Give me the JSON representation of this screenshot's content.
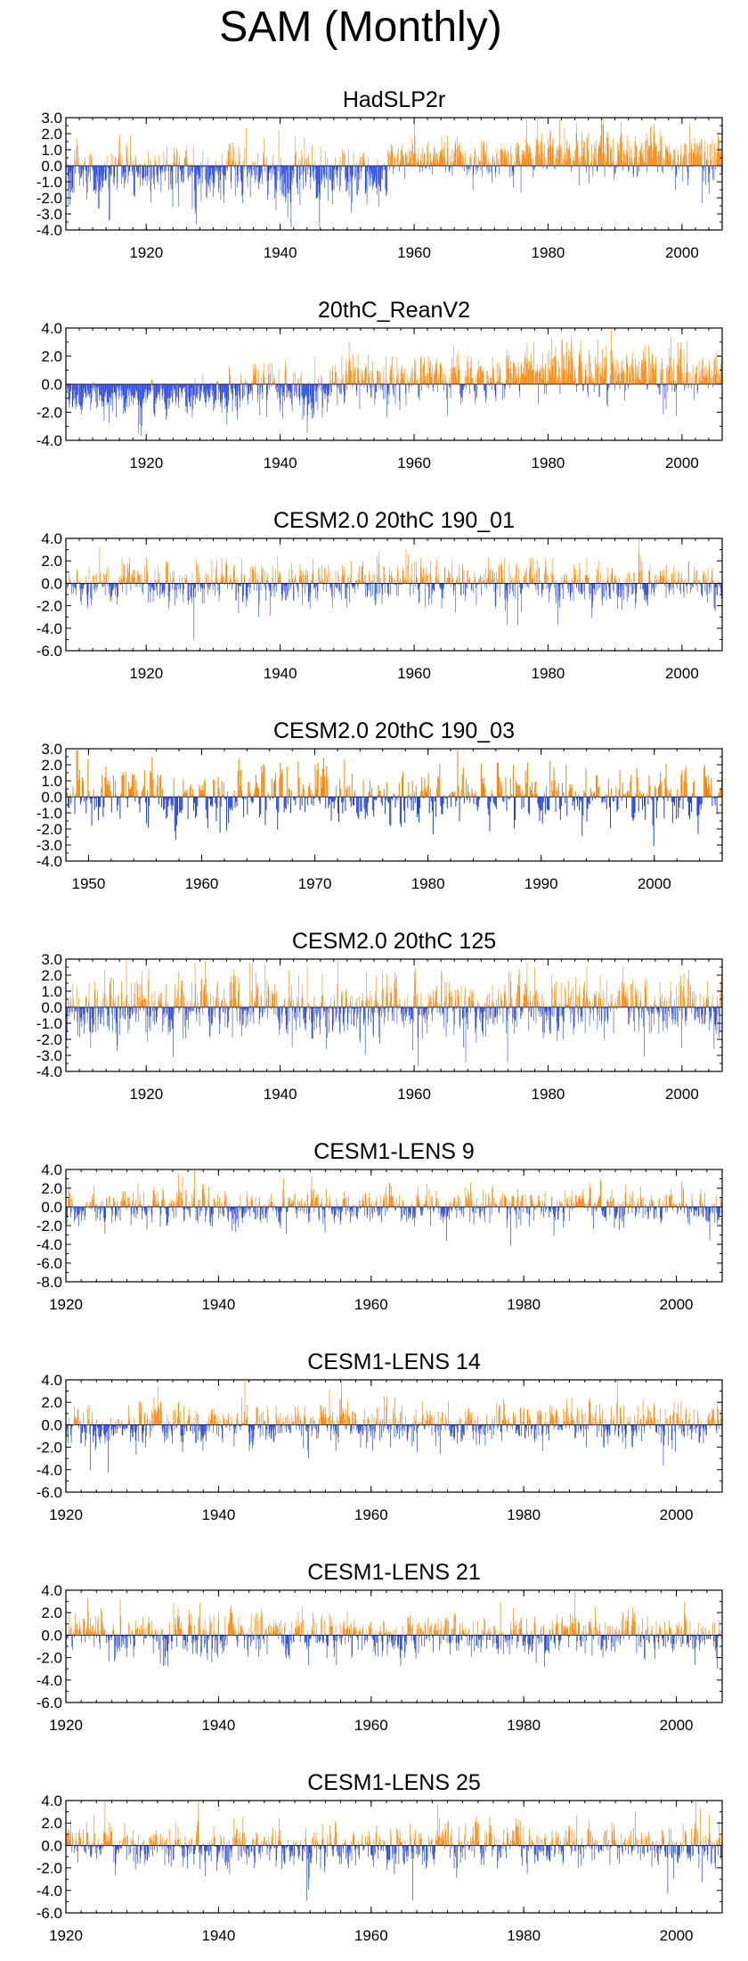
{
  "figure_title": "SAM (Monthly)",
  "colors": {
    "positive": "#ff8000",
    "negative": "#2040dc",
    "axis": "#000000"
  },
  "chart_data": [
    {
      "type": "bar",
      "title": "HadSLP2r",
      "x_range": [
        1908,
        2006
      ],
      "ylim": [
        -4.0,
        3.0
      ],
      "y_ticks": [
        "3.0",
        "2.0",
        "1.0",
        "0.0",
        "-1.0",
        "-2.0",
        "-3.0",
        "-4.0"
      ],
      "x_ticks": [
        "1920",
        "1940",
        "1960",
        "1980",
        "2000"
      ],
      "segments": [
        {
          "start": 1908,
          "end": 1932,
          "mean": -0.6,
          "spread": 0.9
        },
        {
          "start": 1932,
          "end": 1935,
          "mean": -0.1,
          "spread": 1.0
        },
        {
          "start": 1935,
          "end": 1956,
          "mean": -0.7,
          "spread": 0.9
        },
        {
          "start": 1956,
          "end": 1975,
          "mean": 0.55,
          "spread": 0.6
        },
        {
          "start": 1975,
          "end": 2006,
          "mean": 0.8,
          "spread": 0.8
        }
      ]
    },
    {
      "type": "bar",
      "title": "20thC_ReanV2",
      "x_range": [
        1908,
        2006
      ],
      "ylim": [
        -4.0,
        4.0
      ],
      "y_ticks": [
        "4.0",
        "2.0",
        "0.0",
        "-2.0",
        "-4.0"
      ],
      "x_ticks": [
        "1920",
        "1940",
        "1960",
        "1980",
        "2000"
      ],
      "segments": [
        {
          "start": 1908,
          "end": 1932,
          "mean": -0.9,
          "spread": 0.6
        },
        {
          "start": 1932,
          "end": 1948,
          "mean": -0.4,
          "spread": 1.0
        },
        {
          "start": 1948,
          "end": 1976,
          "mean": 0.3,
          "spread": 0.9
        },
        {
          "start": 1976,
          "end": 2006,
          "mean": 0.9,
          "spread": 0.9
        }
      ]
    },
    {
      "type": "bar",
      "title": "CESM2.0 20thC 190_01",
      "x_range": [
        1908,
        2006
      ],
      "ylim": [
        -6.0,
        4.0
      ],
      "y_ticks": [
        "4.0",
        "2.0",
        "0.0",
        "-2.0",
        "-4.0",
        "-6.0"
      ],
      "x_ticks": [
        "1920",
        "1940",
        "1960",
        "1980",
        "2000"
      ],
      "segments": [
        {
          "start": 1908,
          "end": 2006,
          "mean": 0.0,
          "spread": 1.0
        }
      ]
    },
    {
      "type": "bar",
      "title": "CESM2.0 20thC 190_03",
      "x_range": [
        1948,
        2006
      ],
      "ylim": [
        -4.0,
        3.0
      ],
      "y_ticks": [
        "3.0",
        "2.0",
        "1.0",
        "0.0",
        "-1.0",
        "-2.0",
        "-3.0",
        "-4.0"
      ],
      "x_ticks": [
        "1950",
        "1960",
        "1970",
        "1980",
        "1990",
        "2000"
      ],
      "segments": [
        {
          "start": 1948,
          "end": 2006,
          "mean": 0.0,
          "spread": 0.95
        }
      ]
    },
    {
      "type": "bar",
      "title": "CESM2.0 20thC 125",
      "x_range": [
        1908,
        2006
      ],
      "ylim": [
        -4.0,
        3.0
      ],
      "y_ticks": [
        "3.0",
        "2.0",
        "1.0",
        "0.0",
        "-1.0",
        "-2.0",
        "-3.0",
        "-4.0"
      ],
      "x_ticks": [
        "1920",
        "1940",
        "1960",
        "1980",
        "2000"
      ],
      "segments": [
        {
          "start": 1908,
          "end": 2006,
          "mean": 0.0,
          "spread": 1.0
        }
      ]
    },
    {
      "type": "bar",
      "title": "CESM1-LENS 9",
      "x_range": [
        1920,
        2006
      ],
      "ylim": [
        -8.0,
        4.0
      ],
      "y_ticks": [
        "4.0",
        "2.0",
        "0.0",
        "-2.0",
        "-4.0",
        "-6.0",
        "-8.0"
      ],
      "x_ticks": [
        "1920",
        "1940",
        "1960",
        "1980",
        "2000"
      ],
      "segments": [
        {
          "start": 1920,
          "end": 2006,
          "mean": 0.0,
          "spread": 1.0
        }
      ]
    },
    {
      "type": "bar",
      "title": "CESM1-LENS 14",
      "x_range": [
        1920,
        2006
      ],
      "ylim": [
        -6.0,
        4.0
      ],
      "y_ticks": [
        "4.0",
        "2.0",
        "0.0",
        "-2.0",
        "-4.0",
        "-6.0"
      ],
      "x_ticks": [
        "1920",
        "1940",
        "1960",
        "1980",
        "2000"
      ],
      "segments": [
        {
          "start": 1920,
          "end": 2006,
          "mean": 0.0,
          "spread": 1.0
        }
      ]
    },
    {
      "type": "bar",
      "title": "CESM1-LENS 21",
      "x_range": [
        1920,
        2006
      ],
      "ylim": [
        -6.0,
        4.0
      ],
      "y_ticks": [
        "4.0",
        "2.0",
        "0.0",
        "-2.0",
        "-4.0",
        "-6.0"
      ],
      "x_ticks": [
        "1920",
        "1940",
        "1960",
        "1980",
        "2000"
      ],
      "segments": [
        {
          "start": 1920,
          "end": 2006,
          "mean": 0.0,
          "spread": 1.0
        }
      ]
    },
    {
      "type": "bar",
      "title": "CESM1-LENS 25",
      "x_range": [
        1920,
        2006
      ],
      "ylim": [
        -6.0,
        4.0
      ],
      "y_ticks": [
        "4.0",
        "2.0",
        "0.0",
        "-2.0",
        "-4.0",
        "-6.0"
      ],
      "x_ticks": [
        "1920",
        "1940",
        "1960",
        "1980",
        "2000"
      ],
      "segments": [
        {
          "start": 1920,
          "end": 2006,
          "mean": 0.0,
          "spread": 1.0
        }
      ]
    }
  ]
}
